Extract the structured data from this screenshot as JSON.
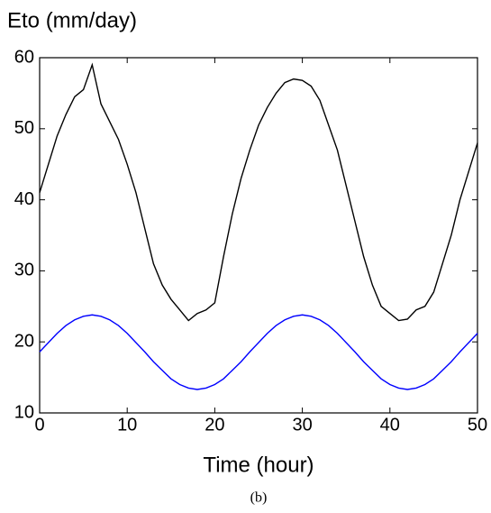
{
  "chart_data": {
    "type": "line",
    "ylabel": "Eto (mm/day)",
    "xlabel": "Time (hour)",
    "caption": "(b)",
    "x": [
      0,
      1,
      2,
      3,
      4,
      5,
      6,
      7,
      8,
      9,
      10,
      11,
      12,
      13,
      14,
      15,
      16,
      17,
      18,
      19,
      20,
      21,
      22,
      23,
      24,
      25,
      26,
      27,
      28,
      29,
      30,
      31,
      32,
      33,
      34,
      35,
      36,
      37,
      38,
      39,
      40,
      41,
      42,
      43,
      44,
      45,
      46,
      47,
      48,
      49,
      50
    ],
    "series": [
      {
        "color": "#000000",
        "values": [
          41,
          45,
          49,
          52,
          54.5,
          55.5,
          59,
          53.5,
          51,
          48.5,
          45,
          41,
          36,
          31,
          28,
          26,
          24.5,
          23,
          24,
          24.5,
          25.5,
          32,
          38,
          43,
          47,
          50.5,
          53,
          55,
          56.5,
          57,
          56.8,
          56,
          54,
          50.5,
          47,
          42,
          37,
          32,
          28,
          25,
          24,
          23,
          23.2,
          24.5,
          25,
          27,
          31,
          35,
          40,
          44,
          48
        ]
      },
      {
        "color": "#0000ff",
        "values": [
          18.6,
          19.9,
          21.2,
          22.3,
          23.1,
          23.6,
          23.8,
          23.6,
          23.1,
          22.3,
          21.2,
          19.9,
          18.6,
          17.2,
          16.0,
          14.8,
          14.0,
          13.5,
          13.3,
          13.5,
          14.0,
          14.8,
          16.0,
          17.2,
          18.6,
          19.9,
          21.2,
          22.3,
          23.1,
          23.6,
          23.8,
          23.6,
          23.1,
          22.3,
          21.2,
          19.9,
          18.6,
          17.2,
          16.0,
          14.8,
          14.0,
          13.5,
          13.3,
          13.5,
          14.0,
          14.8,
          16.0,
          17.2,
          18.6,
          19.9,
          21.2
        ]
      }
    ],
    "xlim": [
      0,
      50
    ],
    "xticks": [
      0,
      10,
      20,
      30,
      40,
      50
    ],
    "ylim": [
      10,
      60
    ],
    "yticks": [
      10,
      20,
      30,
      40,
      50,
      60
    ]
  }
}
